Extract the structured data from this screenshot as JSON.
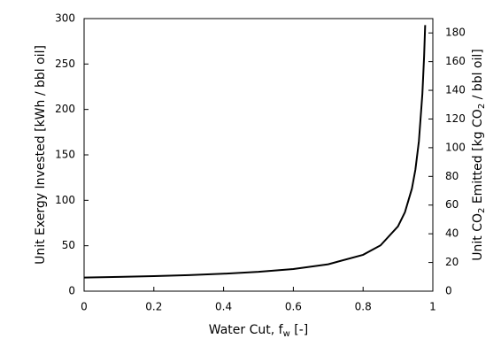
{
  "chart_data": {
    "type": "line",
    "ylabel": "Unit Exergy Invested [kWh / bbl oil]",
    "xlabel_parts": [
      "Water Cut, f",
      "w",
      " [-]"
    ],
    "y2label_parts": [
      "Unit CO",
      "2",
      " Emitted [kg CO",
      "2",
      " / bbl oil]"
    ],
    "x": [
      0,
      0.1,
      0.2,
      0.3,
      0.4,
      0.5,
      0.6,
      0.7,
      0.8,
      0.85,
      0.9,
      0.92,
      0.94,
      0.95,
      0.96,
      0.97,
      0.975,
      0.978
    ],
    "series": [
      {
        "name": "Unit Exergy Invested",
        "color": "#000000",
        "values": [
          15,
          15.7,
          16.6,
          17.7,
          19.2,
          21.3,
          24.4,
          29.6,
          40,
          50.4,
          71.3,
          86.9,
          112.9,
          133.8,
          165,
          217.1,
          258.8,
          292.8
        ]
      }
    ],
    "xlim": [
      0,
      1
    ],
    "xticks": [
      0,
      0.2,
      0.4,
      0.6,
      0.8,
      1
    ],
    "ylim": [
      0,
      300
    ],
    "yticks": [
      0,
      50,
      100,
      150,
      200,
      250,
      300
    ],
    "y2lim": [
      0,
      190
    ],
    "y2ticks": [
      0,
      20,
      40,
      60,
      80,
      100,
      120,
      140,
      160,
      180
    ],
    "grid": false
  }
}
